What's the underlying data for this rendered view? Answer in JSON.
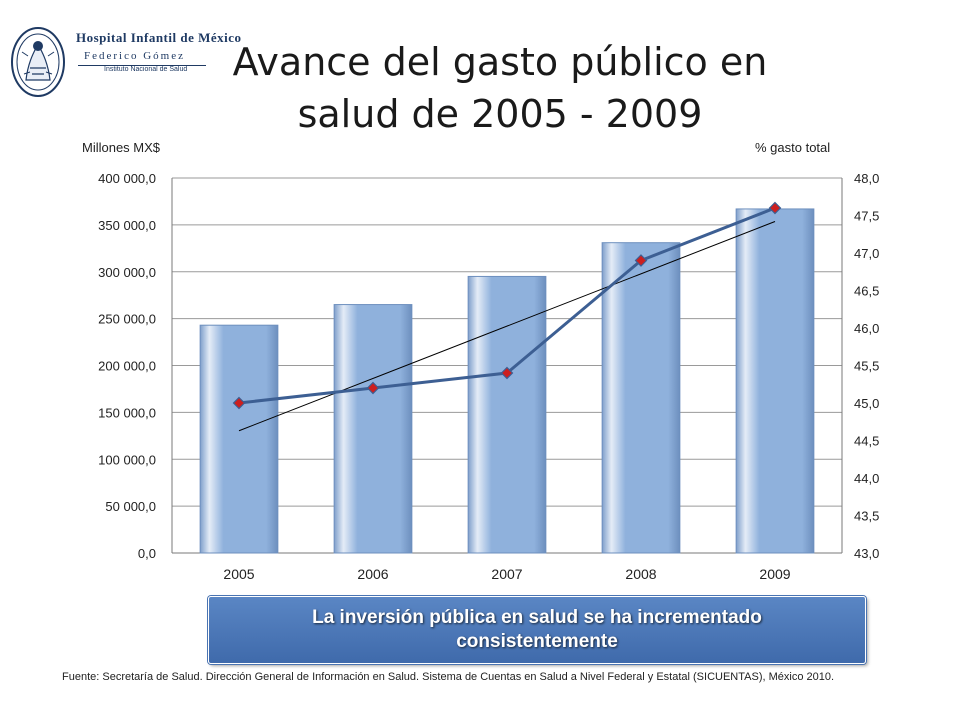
{
  "logo": {
    "line1": "Hospital Infantil de México",
    "line2": "Federico Gómez",
    "line3": "Instituto Nacional de Salud"
  },
  "title": "Avance del gasto público en salud de 2005 - 2009",
  "chart_data": {
    "type": "bar",
    "categories": [
      "2005",
      "2006",
      "2007",
      "2008",
      "2009"
    ],
    "series": [
      {
        "name": "",
        "kind": "bar",
        "axis": "left",
        "values": [
          243000,
          265000,
          295000,
          331000,
          367000
        ]
      },
      {
        "name": "",
        "kind": "line",
        "axis": "right",
        "values": [
          45.0,
          45.2,
          45.4,
          46.9,
          47.6
        ]
      }
    ],
    "trendline": {
      "axis": "right",
      "start": 44.63,
      "end": 47.42
    },
    "ylabel": "Millones MX$",
    "y2label": "% gasto total",
    "ylim": [
      0,
      400000
    ],
    "y2lim": [
      43.0,
      48.0
    ],
    "yticks": [
      "0,0",
      "50 000,0",
      "100 000,0",
      "150 000,0",
      "200 000,0",
      "250 000,0",
      "300 000,0",
      "350 000,0",
      "400 000,0"
    ],
    "y2ticks": [
      "43,0",
      "43,5",
      "44,0",
      "44,5",
      "45,0",
      "45,5",
      "46,0",
      "46,5",
      "47,0",
      "47,5",
      "48,0"
    ],
    "grid": true,
    "colors": {
      "bar": "#8fb1dc",
      "line": "#3d5f93",
      "marker": "#cc1f1f",
      "trend": "#000000"
    }
  },
  "callout": "La inversión pública en salud se ha incrementado consistentemente",
  "source": "Fuente: Secretaría de Salud. Dirección General de Información en Salud. Sistema de Cuentas en Salud a Nivel Federal y Estatal (SICUENTAS), México 2010."
}
